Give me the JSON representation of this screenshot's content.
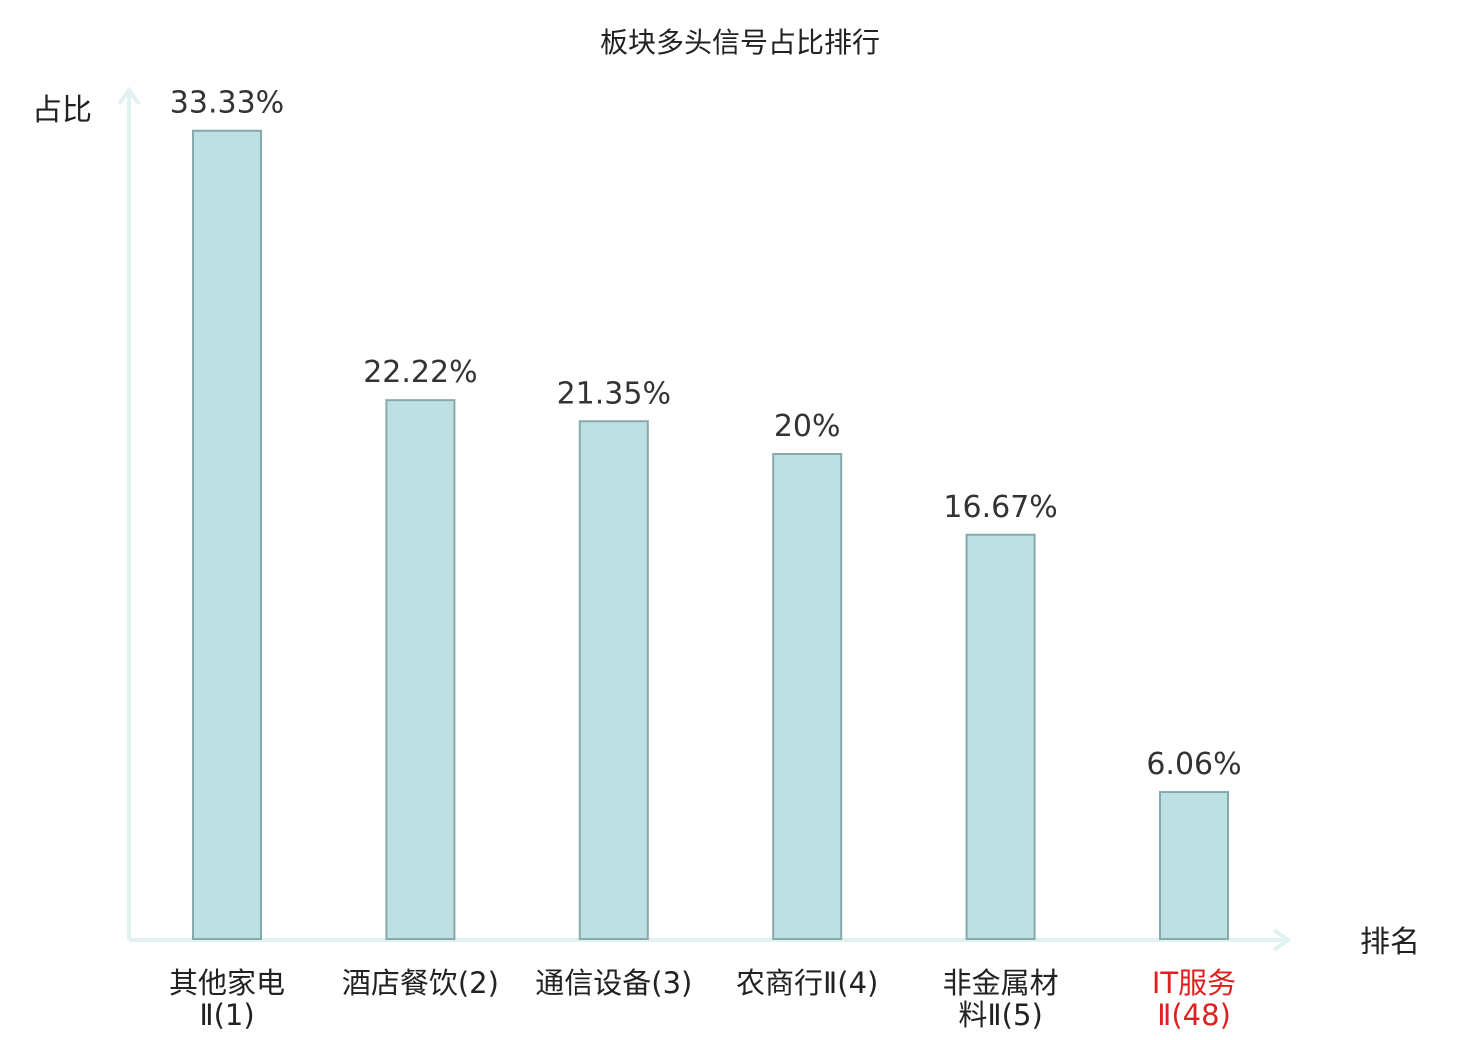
{
  "chart_data": {
    "type": "bar",
    "title": "板块多头信号占比排行",
    "ylabel": "占比",
    "xlabel": "排名",
    "ylim": [
      0,
      35
    ],
    "grid": false,
    "categories": [
      [
        "其他家电",
        "Ⅱ(1)"
      ],
      [
        "酒店餐饮(2)"
      ],
      [
        "通信设备(3)"
      ],
      [
        "农商行Ⅱ(4)"
      ],
      [
        "非金属材",
        "料Ⅱ(5)"
      ],
      [
        "IT服务",
        "Ⅱ(48)"
      ]
    ],
    "values": [
      33.33,
      22.22,
      21.35,
      20,
      16.67,
      6.06
    ],
    "value_labels": [
      "33.33%",
      "22.22%",
      "21.35%",
      "20%",
      "16.67%",
      "6.06%"
    ],
    "highlight_index": 5,
    "colors": {
      "bar_fill": "#bde0e3",
      "bar_stroke": "#86a9ab",
      "axis": "#e2f2f0",
      "highlight_text": "#e02020"
    }
  }
}
